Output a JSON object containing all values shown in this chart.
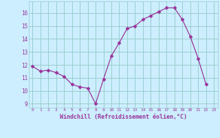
{
  "x": [
    0,
    1,
    2,
    3,
    4,
    5,
    6,
    7,
    8,
    9,
    10,
    11,
    12,
    13,
    14,
    15,
    16,
    17,
    18,
    19,
    20,
    21,
    22,
    23
  ],
  "y": [
    11.9,
    11.5,
    11.6,
    11.4,
    11.1,
    10.5,
    10.3,
    10.2,
    9.0,
    10.9,
    12.7,
    13.7,
    14.8,
    15.0,
    15.5,
    15.8,
    16.1,
    16.4,
    16.4,
    15.5,
    14.2,
    12.5,
    10.5,
    null
  ],
  "xlim": [
    -0.5,
    23.5
  ],
  "ylim_min": 8.7,
  "ylim_max": 16.9,
  "yticks": [
    9,
    10,
    11,
    12,
    13,
    14,
    15,
    16
  ],
  "xticks": [
    0,
    1,
    2,
    3,
    4,
    5,
    6,
    7,
    8,
    9,
    10,
    11,
    12,
    13,
    14,
    15,
    16,
    17,
    18,
    19,
    20,
    21,
    22,
    23
  ],
  "xlabel": "Windchill (Refroidissement éolien,°C)",
  "line_color": "#993399",
  "marker": "D",
  "marker_size": 2.5,
  "bg_color": "#cceeff",
  "grid_color": "#99cccc",
  "tick_color": "#993399",
  "label_color": "#993399"
}
